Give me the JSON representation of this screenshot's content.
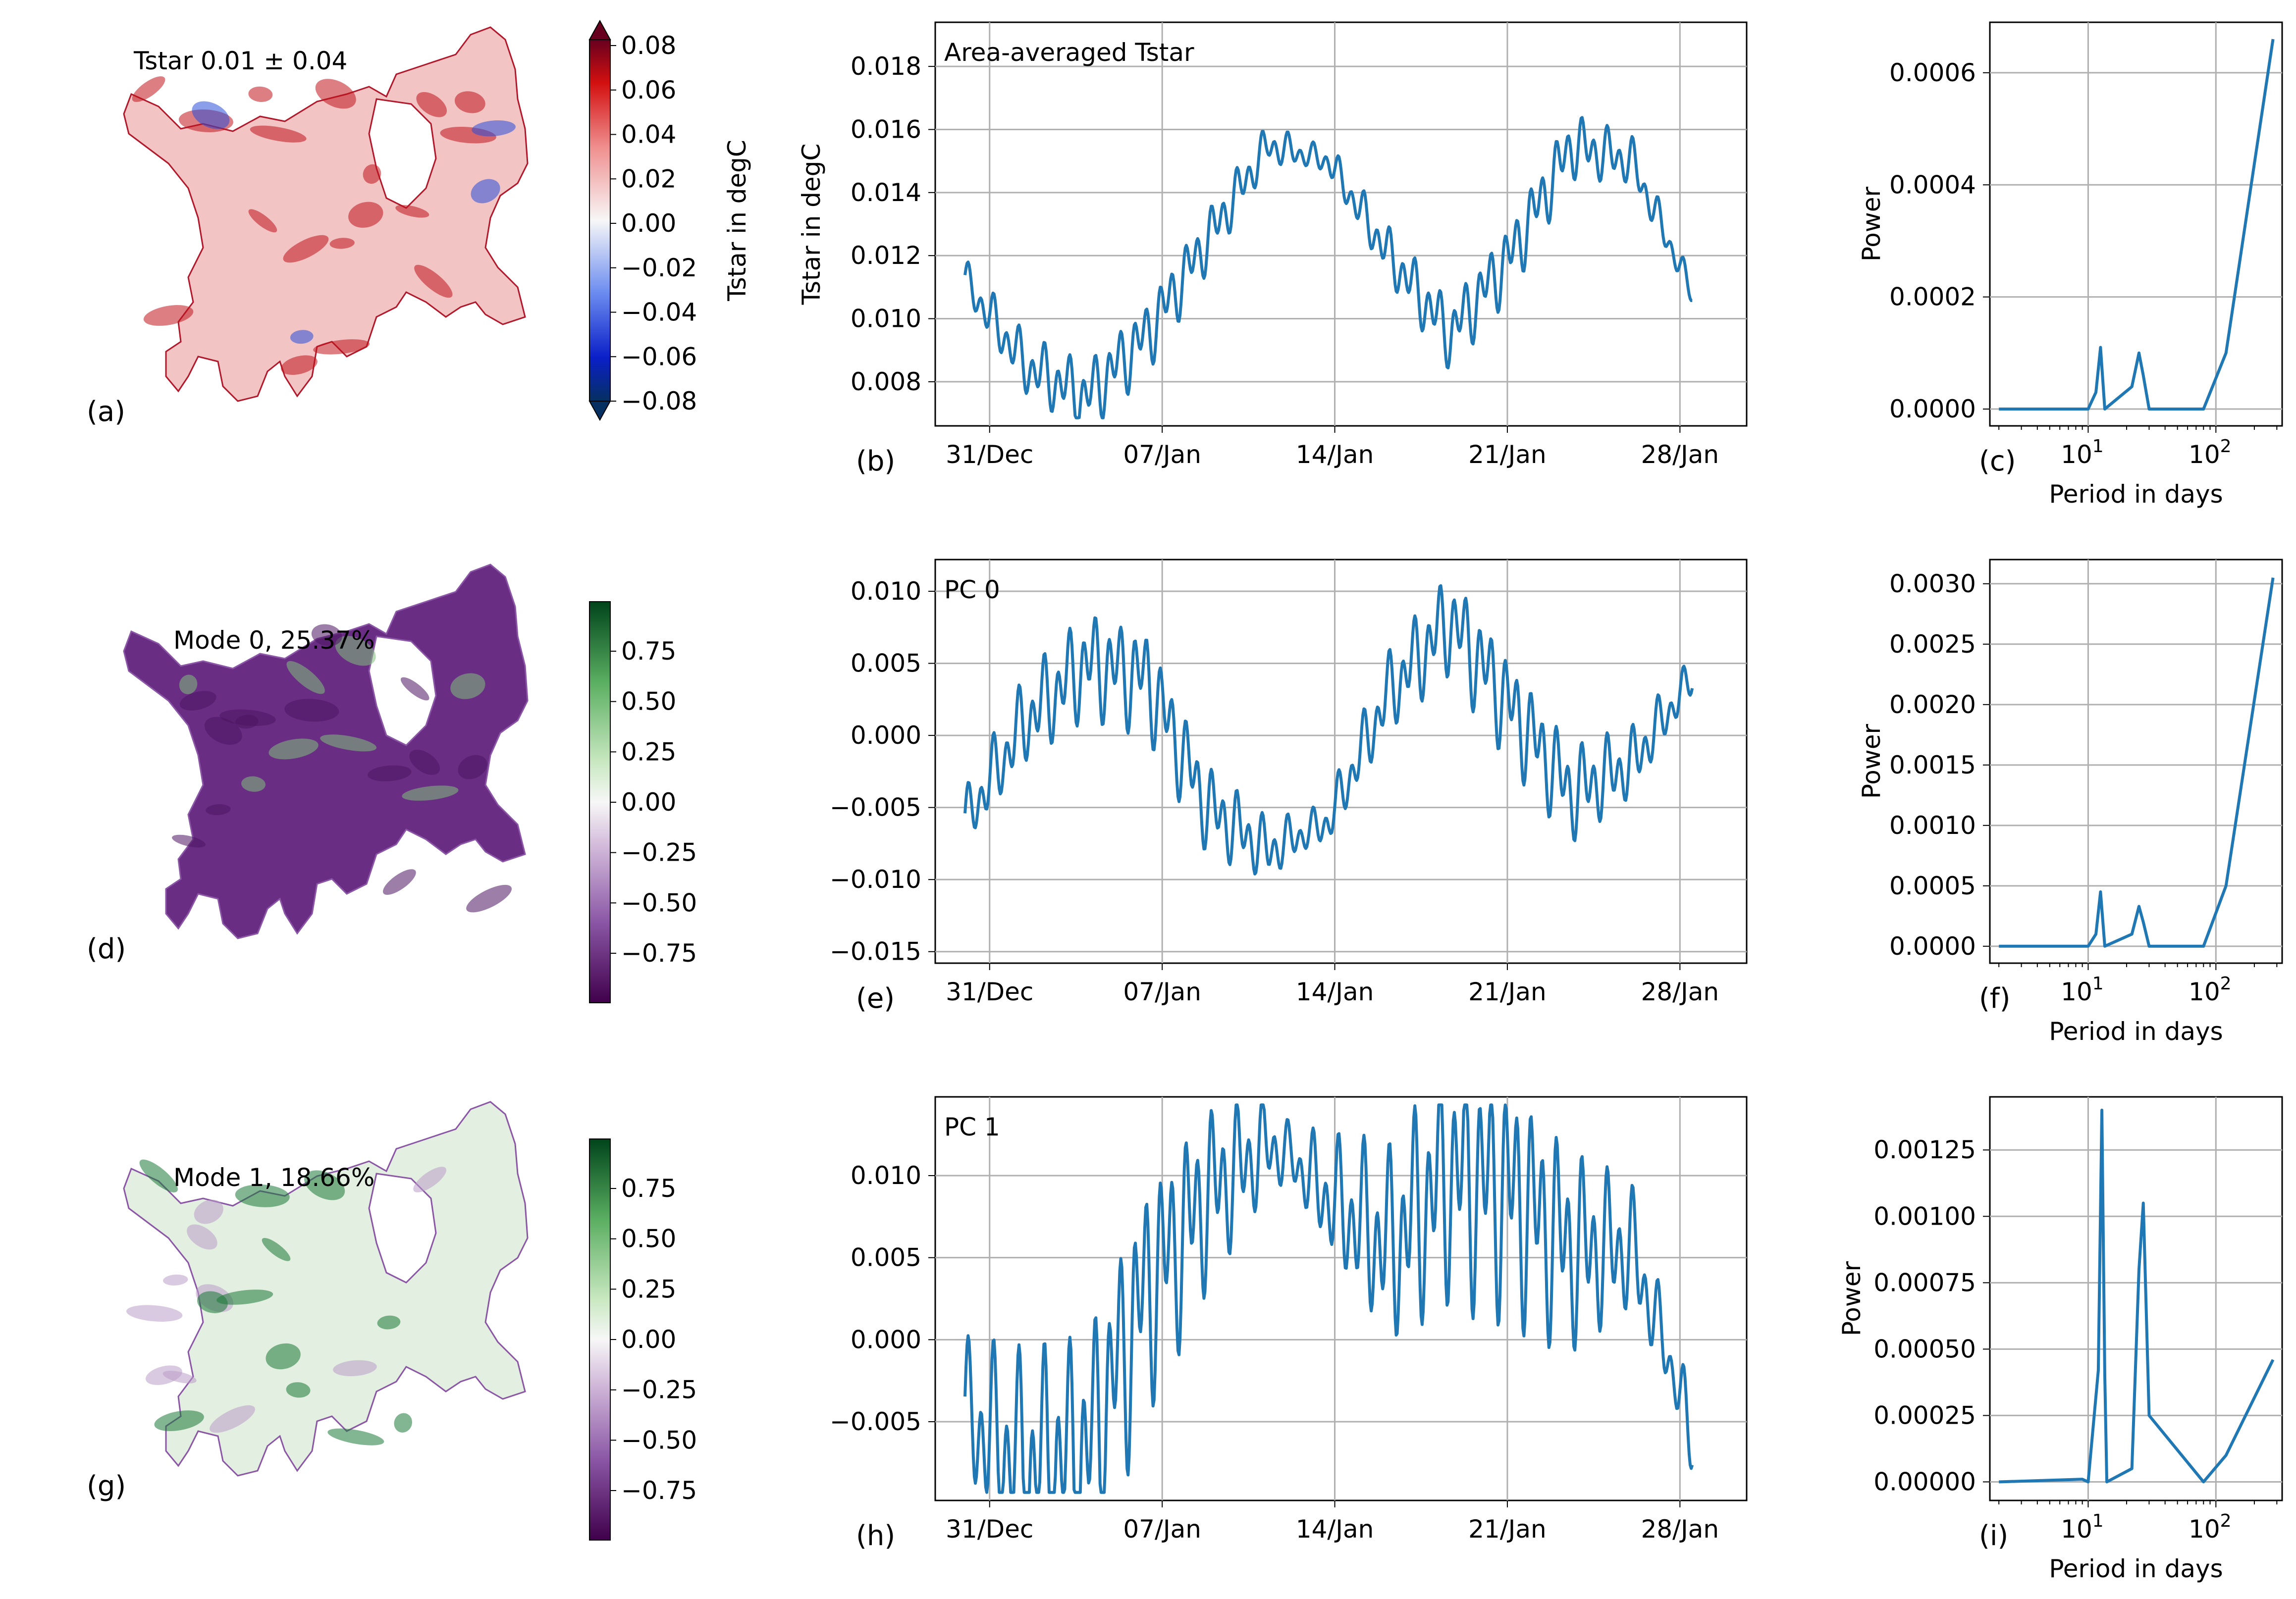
{
  "rows": [
    {
      "map": {
        "title": "Tstar 0.01 ± 0.04",
        "panel_label": "(a)",
        "cmap": "RdBu_r",
        "extend": true,
        "cbar_ticks": [
          "0.08",
          "0.06",
          "0.04",
          "0.02",
          "0.00",
          "−0.02",
          "−0.04",
          "−0.06",
          "−0.08"
        ],
        "cbar_label": "Tstar in degC"
      },
      "ts": {
        "inset_title": "Area-averaged Tstar",
        "panel_label": "(b)",
        "ylabel": "Tstar in degC",
        "ylim": [
          0.0066,
          0.0194
        ],
        "yticks": [
          0.008,
          0.01,
          0.012,
          0.014,
          0.016,
          0.018
        ],
        "ytick_labels": [
          "0.008",
          "0.010",
          "0.012",
          "0.014",
          "0.016",
          "0.018"
        ]
      },
      "ps": {
        "panel_label": "(c)",
        "ylabel": "Power",
        "xlabel": "Period in days",
        "ylim": [
          -3e-05,
          0.00069
        ],
        "yticks": [
          0,
          0.0002,
          0.0004,
          0.0006
        ],
        "ytick_labels": [
          "0.0000",
          "0.0002",
          "0.0004",
          "0.0006"
        ]
      }
    },
    {
      "map": {
        "title": "Mode 0, 25.37%",
        "panel_label": "(d)",
        "cmap": "PRGn",
        "extend": false,
        "cbar_ticks": [
          "0.75",
          "0.50",
          "0.25",
          "0.00",
          "−0.25",
          "−0.50",
          "−0.75"
        ],
        "cbar_label": ""
      },
      "ts": {
        "inset_title": "PC 0",
        "panel_label": "(e)",
        "ylabel": "",
        "ylim": [
          -0.0158,
          0.0122
        ],
        "yticks": [
          -0.015,
          -0.01,
          -0.005,
          0.0,
          0.005,
          0.01
        ],
        "ytick_labels": [
          "−0.015",
          "−0.010",
          "−0.005",
          "0.000",
          "0.005",
          "0.010"
        ]
      },
      "ps": {
        "panel_label": "(f)",
        "ylabel": "Power",
        "xlabel": "Period in days",
        "ylim": [
          -0.00014,
          0.0032
        ],
        "yticks": [
          0,
          0.0005,
          0.001,
          0.0015,
          0.002,
          0.0025,
          0.003
        ],
        "ytick_labels": [
          "0.0000",
          "0.0005",
          "0.0010",
          "0.0015",
          "0.0020",
          "0.0025",
          "0.0030"
        ]
      }
    },
    {
      "map": {
        "title": "Mode 1, 18.66%",
        "panel_label": "(g)",
        "cmap": "PRGn",
        "extend": false,
        "cbar_ticks": [
          "0.75",
          "0.50",
          "0.25",
          "0.00",
          "−0.25",
          "−0.50",
          "−0.75"
        ],
        "cbar_label": ""
      },
      "ts": {
        "inset_title": "PC 1",
        "panel_label": "(h)",
        "ylabel": "",
        "ylim": [
          -0.0098,
          0.0148
        ],
        "yticks": [
          -0.005,
          0.0,
          0.005,
          0.01
        ],
        "ytick_labels": [
          "−0.005",
          "0.000",
          "0.005",
          "0.010"
        ]
      },
      "ps": {
        "panel_label": "(i)",
        "ylabel": "Power",
        "xlabel": "Period in days",
        "ylim": [
          -7e-05,
          0.00145
        ],
        "yticks": [
          0,
          0.00025,
          0.0005,
          0.00075,
          0.001,
          0.00125
        ],
        "ytick_labels": [
          "0.00000",
          "0.00025",
          "0.00050",
          "0.00075",
          "0.00100",
          "0.00125"
        ]
      }
    }
  ],
  "time_axis": {
    "start": "2019-12-30",
    "end": "2020-01-29",
    "ticks": [
      "31/Dec",
      "07/Jan",
      "14/Jan",
      "21/Jan",
      "28/Jan"
    ],
    "tick_days": [
      1,
      8,
      15,
      22,
      29
    ]
  },
  "period_axis": {
    "log": true,
    "xlim": [
      1.7,
      330
    ],
    "tick_labels": [
      "10",
      "1",
      "10",
      "2"
    ],
    "tick_values": [
      10,
      100
    ]
  },
  "colors": {
    "line": "#1f77b4",
    "grid": "#b0b0b0"
  },
  "chart_data": [
    {
      "type": "line",
      "title": "Area-averaged Tstar",
      "ylabel": "Tstar in degC",
      "x": [
        "2019-12-30",
        "2020-01-02",
        "2020-01-04",
        "2020-01-07",
        "2020-01-09",
        "2020-01-12",
        "2020-01-14",
        "2020-01-17",
        "2020-01-19",
        "2020-01-22",
        "2020-01-24",
        "2020-01-27",
        "2020-01-29"
      ],
      "series": [
        {
          "values": [
            0.0112,
            0.0085,
            0.0075,
            0.0095,
            0.0125,
            0.0155,
            0.015,
            0.012,
            0.0095,
            0.012,
            0.0155,
            0.015,
            0.0108
          ]
        }
      ]
    },
    {
      "type": "line",
      "title": "PC 0",
      "x": [
        "2019-12-30",
        "2020-01-02",
        "2020-01-04",
        "2020-01-07",
        "2020-01-09",
        "2020-01-12",
        "2020-01-14",
        "2020-01-17",
        "2020-01-19",
        "2020-01-22",
        "2020-01-24",
        "2020-01-27",
        "2020-01-29"
      ],
      "series": [
        {
          "values": [
            -0.006,
            0.001,
            0.005,
            0.004,
            -0.005,
            -0.008,
            -0.006,
            0.003,
            0.008,
            0.002,
            -0.004,
            -0.002,
            0.004
          ]
        }
      ]
    },
    {
      "type": "line",
      "title": "PC 1",
      "x": [
        "2019-12-30",
        "2020-01-02",
        "2020-01-04",
        "2020-01-07",
        "2020-01-09",
        "2020-01-12",
        "2020-01-14",
        "2020-01-17",
        "2020-01-19",
        "2020-01-22",
        "2020-01-24",
        "2020-01-27",
        "2020-01-29"
      ],
      "series": [
        {
          "values": [
            -0.003,
            -0.005,
            -0.004,
            0.006,
            0.011,
            0.013,
            0.01,
            0.008,
            0.013,
            0.012,
            0.008,
            0.007,
            -0.005
          ]
        }
      ]
    },
    {
      "type": "line",
      "xlabel": "Period in days",
      "ylabel": "Power",
      "xscale": "log",
      "series": [
        {
          "x": [
            2,
            10,
            11.5,
            12.5,
            13.5,
            22,
            25,
            27,
            30,
            80,
            120,
            280
          ],
          "values": [
            0,
            0,
            3e-05,
            0.00011,
            0,
            4e-05,
            0.0001,
            6e-05,
            0,
            0,
            0.0001,
            0.00066
          ]
        }
      ]
    },
    {
      "type": "line",
      "xlabel": "Period in days",
      "ylabel": "Power",
      "xscale": "log",
      "series": [
        {
          "x": [
            2,
            10,
            11.5,
            12.5,
            13.5,
            22,
            25,
            27,
            30,
            80,
            120,
            280
          ],
          "values": [
            0,
            0,
            0.0001,
            0.00045,
            0,
            0.0001,
            0.00033,
            0.0002,
            0,
            0,
            0.0005,
            0.00305
          ]
        }
      ]
    },
    {
      "type": "line",
      "xlabel": "Period in days",
      "ylabel": "Power",
      "xscale": "log",
      "series": [
        {
          "x": [
            2,
            9,
            10,
            12,
            12.8,
            13.5,
            14,
            22,
            25,
            27,
            30,
            80,
            120,
            280
          ],
          "values": [
            0,
            1e-05,
            0,
            0.00042,
            0.0014,
            0.0004,
            0,
            5e-05,
            0.0008,
            0.00105,
            0.00025,
            0,
            0.0001,
            0.00046
          ]
        }
      ]
    }
  ]
}
